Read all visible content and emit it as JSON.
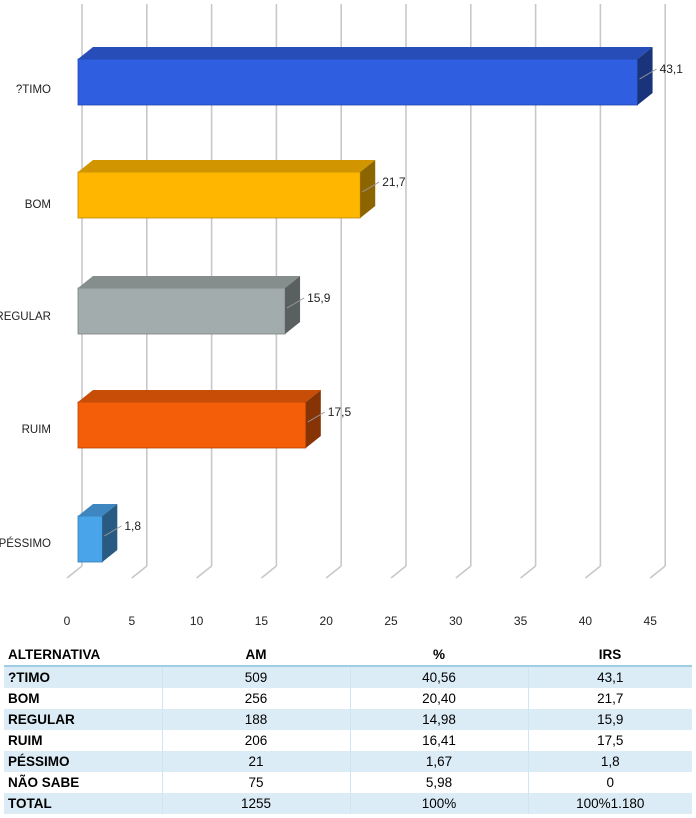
{
  "chart_data": {
    "type": "bar",
    "orientation": "horizontal",
    "categories": [
      "?TIMO",
      "BOM",
      "REGULAR",
      "RUIM",
      "PÉSSIMO"
    ],
    "values": [
      43.1,
      21.7,
      15.9,
      17.5,
      1.8
    ],
    "value_labels": [
      "43,1",
      "21,7",
      "15,9",
      "17,5",
      "1,8"
    ],
    "bar_colors": [
      "#2f5fe0",
      "#ffb600",
      "#a3acac",
      "#f45e09",
      "#4aa4ea"
    ],
    "xlim": [
      0,
      45
    ],
    "xticks": [
      "0",
      "5",
      "10",
      "15",
      "20",
      "25",
      "30",
      "35",
      "40",
      "45"
    ],
    "grid": true,
    "style": "3d"
  },
  "table": {
    "headers": [
      "ALTERNATIVA",
      "AM",
      "%",
      "IRS"
    ],
    "rows": [
      [
        "?TIMO",
        "509",
        "40,56",
        "43,1"
      ],
      [
        "BOM",
        "256",
        "20,40",
        "21,7"
      ],
      [
        "REGULAR",
        "188",
        "14,98",
        "15,9"
      ],
      [
        "RUIM",
        "206",
        "16,41",
        "17,5"
      ],
      [
        "PÉSSIMO",
        "21",
        "1,67",
        "1,8"
      ],
      [
        "NÃO SABE",
        "75",
        "5,98",
        "0"
      ],
      [
        "TOTAL",
        "1255",
        "100%",
        "100%1.180"
      ]
    ]
  }
}
